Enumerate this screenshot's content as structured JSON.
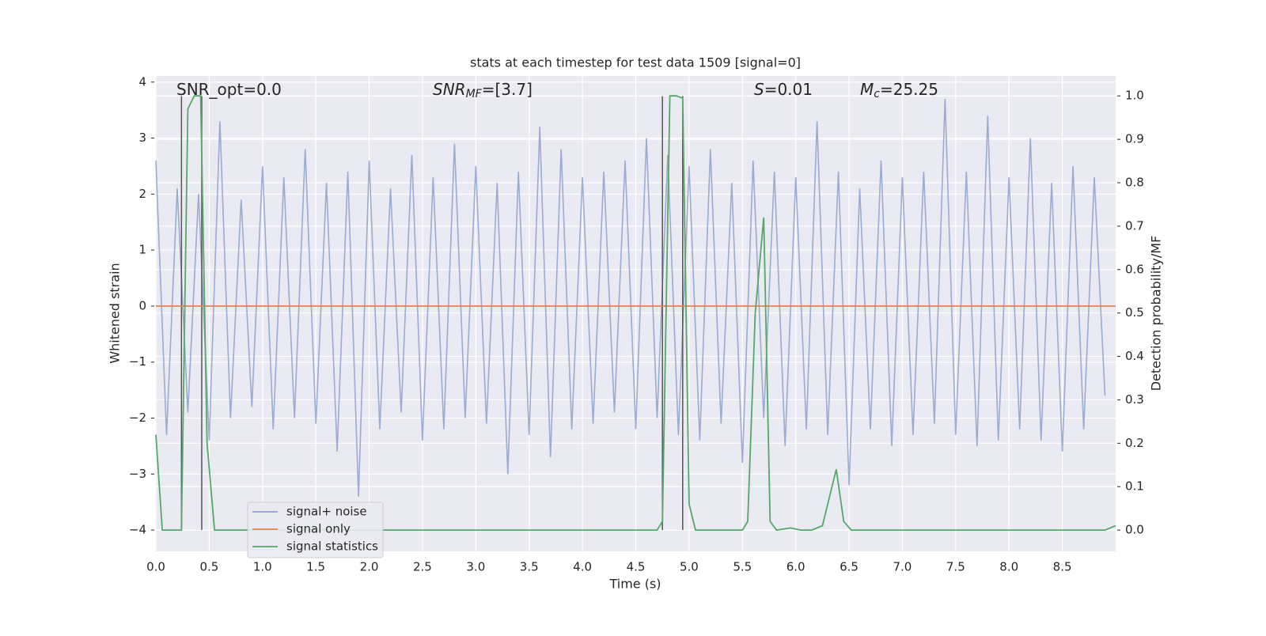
{
  "chart_data": {
    "type": "line",
    "title": "stats at each timestep for test data 1509 [signal=0]",
    "x_label": "Time (s)",
    "y_label": "Whitened strain",
    "y2_label": "Detection probability/MF",
    "xlim": [
      0,
      9.0
    ],
    "ylim": [
      -4.38,
      4.11
    ],
    "y2lim": [
      -0.049,
      1.046
    ],
    "xticks": [
      {
        "value": 0,
        "label": "0.0"
      },
      0.5,
      {
        "value": 1,
        "label": "1.0"
      },
      1.5,
      {
        "value": 2,
        "label": "2.0"
      },
      2.5,
      {
        "value": 3,
        "label": "3.0"
      },
      3.5,
      {
        "value": 4,
        "label": "4.0"
      },
      4.5,
      {
        "value": 5,
        "label": "5.0"
      },
      5.5,
      {
        "value": 6,
        "label": "6.0"
      },
      6.5,
      {
        "value": 7,
        "label": "7.0"
      },
      7.5,
      {
        "value": 8,
        "label": "8.0"
      },
      8.5
    ],
    "yticks": [
      {
        "value": -4,
        "label": "−4"
      },
      {
        "value": -3,
        "label": "−3"
      },
      {
        "value": -2,
        "label": "−2"
      },
      {
        "value": -1,
        "label": "−1"
      },
      0,
      1,
      2,
      3,
      4
    ],
    "y2ticks": [
      {
        "value": 0,
        "label": "0.0"
      },
      0.1,
      0.2,
      0.3,
      0.4,
      0.5,
      0.6,
      0.7,
      0.8,
      0.9,
      {
        "value": 1,
        "label": "1.0"
      }
    ],
    "grid": true,
    "legend": "lower left",
    "series": [
      {
        "name": "signal+ noise",
        "color": "#8da0cb",
        "x": [
          0.0,
          0.1,
          0.2,
          0.3,
          0.4,
          0.5,
          0.6,
          0.7,
          0.8,
          0.9,
          1.0,
          1.1,
          1.2,
          1.3,
          1.4,
          1.5,
          1.6,
          1.7,
          1.8,
          1.9,
          2.0,
          2.1,
          2.2,
          2.3,
          2.4,
          2.5,
          2.6,
          2.7,
          2.8,
          2.9,
          3.0,
          3.1,
          3.2,
          3.3,
          3.4,
          3.5,
          3.6,
          3.7,
          3.8,
          3.9,
          4.0,
          4.1,
          4.2,
          4.3,
          4.4,
          4.5,
          4.6,
          4.7,
          4.8,
          4.9,
          5.0,
          5.1,
          5.2,
          5.3,
          5.4,
          5.5,
          5.6,
          5.7,
          5.8,
          5.9,
          6.0,
          6.1,
          6.2,
          6.3,
          6.4,
          6.5,
          6.6,
          6.7,
          6.8,
          6.9,
          7.0,
          7.1,
          7.2,
          7.3,
          7.4,
          7.5,
          7.6,
          7.7,
          7.8,
          7.9,
          8.0,
          8.1,
          8.2,
          8.3,
          8.4,
          8.5,
          8.6,
          8.7,
          8.8,
          8.9
        ],
        "values": [
          2.6,
          -2.3,
          2.1,
          -1.9,
          2.0,
          -2.4,
          3.3,
          -2.0,
          1.9,
          -1.8,
          2.5,
          -2.2,
          2.3,
          -2.0,
          2.8,
          -2.1,
          2.2,
          -2.6,
          2.4,
          -3.4,
          2.6,
          -2.2,
          2.1,
          -1.9,
          2.7,
          -2.4,
          2.3,
          -2.2,
          2.9,
          -2.0,
          2.5,
          -2.1,
          2.2,
          -3.0,
          2.4,
          -2.3,
          3.2,
          -2.7,
          2.8,
          -2.2,
          2.3,
          -2.1,
          2.4,
          -1.9,
          2.6,
          -2.2,
          3.0,
          -2.0,
          2.7,
          -2.3,
          2.5,
          -2.4,
          2.8,
          -2.1,
          2.2,
          -2.8,
          2.6,
          -2.0,
          2.4,
          -2.5,
          2.3,
          -2.2,
          3.3,
          -2.3,
          2.4,
          -3.2,
          2.1,
          -2.2,
          2.6,
          -2.5,
          2.3,
          -2.3,
          2.4,
          -2.1,
          3.7,
          -2.3,
          2.4,
          -2.5,
          3.4,
          -2.4,
          2.3,
          -2.2,
          3.0,
          -2.4,
          2.2,
          -2.6,
          2.5,
          -2.2,
          2.3,
          -1.6
        ]
      },
      {
        "name": "signal only",
        "color": "#dd8452",
        "x": [
          0,
          9.0
        ],
        "values": [
          0,
          0
        ]
      },
      {
        "name": "signal statistics",
        "color": "#55a868",
        "axis": "y2",
        "x": [
          0,
          0.06,
          0.24,
          0.3,
          0.36,
          0.42,
          0.48,
          0.55,
          4.7,
          4.75,
          4.82,
          4.88,
          4.94,
          5.0,
          5.06,
          5.5,
          5.55,
          5.62,
          5.7,
          5.76,
          5.82,
          5.95,
          6.05,
          6.15,
          6.25,
          6.38,
          6.45,
          6.52,
          8.9,
          9.0
        ],
        "values": [
          0.22,
          0,
          0,
          0.97,
          1.0,
          1.0,
          0.2,
          0,
          0,
          0.02,
          1.0,
          1.0,
          0.995,
          0.06,
          0,
          0,
          0.02,
          0.5,
          0.72,
          0.02,
          0,
          0.005,
          0,
          0,
          0.01,
          0.14,
          0.02,
          0,
          0,
          0.01
        ]
      }
    ],
    "vlines": {
      "color": "#555555",
      "x": [
        0.24,
        0.43,
        4.75,
        4.94
      ],
      "ymin": -4,
      "ymax": 3.75
    },
    "annotations": [
      {
        "text": "SNR_opt=0.0"
      },
      {
        "base": "SNR",
        "sub": "MF",
        "rest": "=[3.7]"
      },
      {
        "base": "S",
        "rest": "=0.01"
      },
      {
        "base": "M",
        "sub": "c",
        "rest": "=25.25"
      }
    ]
  }
}
